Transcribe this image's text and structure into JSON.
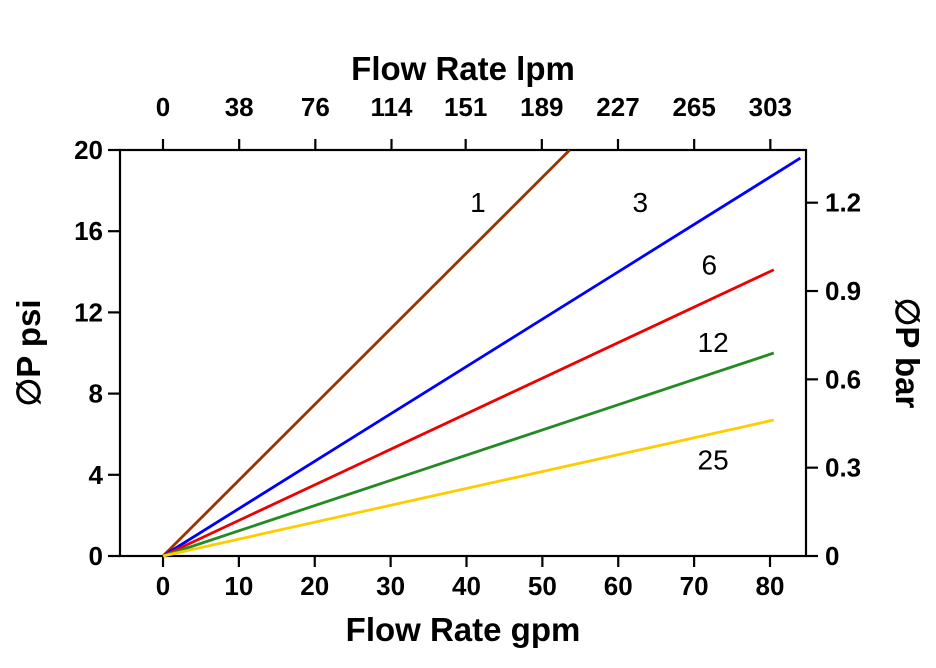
{
  "page": {
    "background": "#ffffff",
    "axis_color": "#000000"
  },
  "chart_data": {
    "type": "line",
    "title": "",
    "grid": false,
    "legend_position": "inline-labels",
    "top_axis": {
      "label": "Flow Rate lpm",
      "ticks": [
        0,
        38,
        76,
        114,
        151,
        189,
        227,
        265,
        303
      ]
    },
    "bottom_axis": {
      "label": "Flow Rate gpm",
      "ticks": [
        0,
        10,
        20,
        30,
        40,
        50,
        60,
        70,
        80
      ],
      "range": [
        0,
        80
      ]
    },
    "left_axis": {
      "label": "∅P psi",
      "ticks": [
        0,
        4,
        8,
        12,
        16,
        20
      ],
      "range": [
        0,
        20
      ]
    },
    "right_axis": {
      "label": "∅P bar",
      "ticks": [
        0,
        0.3,
        0.6,
        0.9,
        1.2
      ],
      "range": [
        0,
        1.38
      ]
    },
    "series": [
      {
        "name": "1",
        "color": "#993300",
        "x": [
          0,
          53.6
        ],
        "y": [
          0,
          20
        ],
        "label_at": {
          "x": 41.5,
          "y": 17.4
        }
      },
      {
        "name": "3",
        "color": "#0000ff",
        "x": [
          0,
          84.0
        ],
        "y": [
          0,
          19.6
        ],
        "label_at": {
          "x": 62.9,
          "y": 17.4
        }
      },
      {
        "name": "6",
        "color": "#ee0000",
        "x": [
          0,
          80.5
        ],
        "y": [
          0,
          14.1
        ],
        "label_at": {
          "x": 72.0,
          "y": 14.3
        }
      },
      {
        "name": "12",
        "color": "#228b22",
        "x": [
          0,
          80.5
        ],
        "y": [
          0,
          10.0
        ],
        "label_at": {
          "x": 72.5,
          "y": 10.5
        }
      },
      {
        "name": "25",
        "color": "#ffcc00",
        "x": [
          0,
          80.5
        ],
        "y": [
          0,
          6.7
        ],
        "label_at": {
          "x": 72.5,
          "y": 4.7
        }
      }
    ]
  }
}
